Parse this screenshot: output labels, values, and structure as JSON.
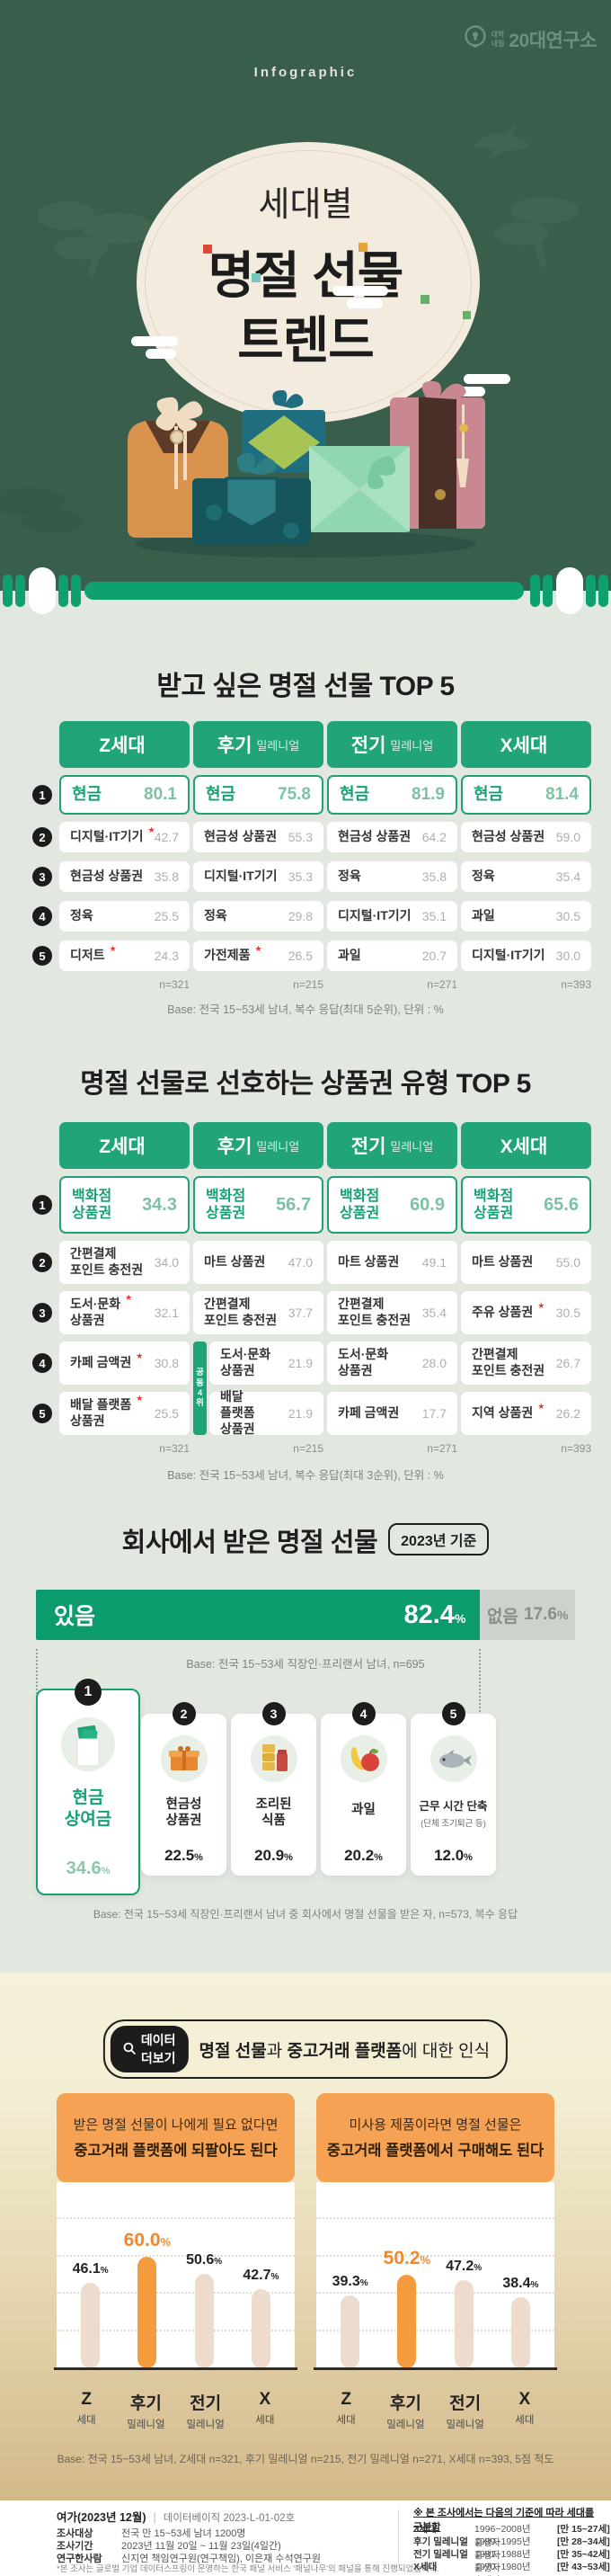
{
  "units": {
    "percent": "%"
  },
  "hero": {
    "tag": "Infographic",
    "logo_small_1": "대학",
    "logo_small_2": "내일",
    "logo_main": "20대연구소",
    "title1": "세대별",
    "title2": "명절 선물",
    "title3": "트렌드"
  },
  "table1": {
    "title": "받고 싶은 명절 선물 TOP 5",
    "base": "Base: 전국 15~53세 남녀, 복수 응답(최대 5순위), 단위 : %",
    "ranks": [
      "1",
      "2",
      "3",
      "4",
      "5"
    ],
    "columns": [
      {
        "name": "Z세대",
        "suffix": "",
        "n": "n=321",
        "rows": [
          {
            "label": "현금",
            "star": "",
            "value": "80.1"
          },
          {
            "label": "디지털·IT기기",
            "star": "★",
            "value": "42.7"
          },
          {
            "label": "현금성 상품권",
            "star": "",
            "value": "35.8"
          },
          {
            "label": "정육",
            "star": "",
            "value": "25.5"
          },
          {
            "label": "디저트",
            "star": "★",
            "value": "24.3"
          }
        ]
      },
      {
        "name": "후기",
        "suffix": "밀레니얼",
        "n": "n=215",
        "rows": [
          {
            "label": "현금",
            "star": "",
            "value": "75.8"
          },
          {
            "label": "현금성 상품권",
            "star": "",
            "value": "55.3"
          },
          {
            "label": "디지털·IT기기",
            "star": "",
            "value": "35.3"
          },
          {
            "label": "정육",
            "star": "",
            "value": "29.8"
          },
          {
            "label": "가전제품",
            "star": "★",
            "value": "26.5"
          }
        ]
      },
      {
        "name": "전기",
        "suffix": "밀레니얼",
        "n": "n=271",
        "rows": [
          {
            "label": "현금",
            "star": "",
            "value": "81.9"
          },
          {
            "label": "현금성 상품권",
            "star": "",
            "value": "64.2"
          },
          {
            "label": "정육",
            "star": "",
            "value": "35.8"
          },
          {
            "label": "디지털·IT기기",
            "star": "",
            "value": "35.1"
          },
          {
            "label": "과일",
            "star": "",
            "value": "20.7"
          }
        ]
      },
      {
        "name": "X세대",
        "suffix": "",
        "n": "n=393",
        "rows": [
          {
            "label": "현금",
            "star": "",
            "value": "81.4"
          },
          {
            "label": "현금성 상품권",
            "star": "",
            "value": "59.0"
          },
          {
            "label": "정육",
            "star": "",
            "value": "35.4"
          },
          {
            "label": "과일",
            "star": "",
            "value": "30.5"
          },
          {
            "label": "디지털·IT기기",
            "star": "",
            "value": "30.0"
          }
        ]
      }
    ]
  },
  "table2": {
    "title": "명절 선물로 선호하는 상품권 유형 TOP 5",
    "base": "Base: 전국 15~53세 남녀, 복수 응답(최대 3순위), 단위 : %",
    "tie": "공\n동\n4\n위",
    "ranks": [
      "1",
      "2",
      "3",
      "4",
      "5"
    ],
    "columns": [
      {
        "name": "Z세대",
        "suffix": "",
        "n": "n=321",
        "rows": [
          {
            "label": "백화점\n상품권",
            "star": "",
            "value": "34.3"
          },
          {
            "label": "간편결제\n포인트 충전권",
            "star": "",
            "value": "34.0"
          },
          {
            "label": "도서·문화\n상품권",
            "star": "★",
            "value": "32.1"
          },
          {
            "label": "카페 금액권",
            "star": "★",
            "value": "30.8"
          },
          {
            "label": "배달 플랫폼\n상품권",
            "star": "★",
            "value": "25.5"
          }
        ]
      },
      {
        "name": "후기",
        "suffix": "밀레니얼",
        "n": "n=215",
        "rows": [
          {
            "label": "백화점\n상품권",
            "star": "",
            "value": "56.7"
          },
          {
            "label": "마트 상품권",
            "star": "",
            "value": "47.0"
          },
          {
            "label": "간편결제\n포인트 충전권",
            "star": "",
            "value": "37.7"
          },
          {
            "label": "도서·문화\n상품권",
            "star": "",
            "value": "21.9"
          },
          {
            "label": "배달 플랫폼\n상품권",
            "star": "",
            "value": "21.9"
          }
        ]
      },
      {
        "name": "전기",
        "suffix": "밀레니얼",
        "n": "n=271",
        "rows": [
          {
            "label": "백화점\n상품권",
            "star": "",
            "value": "60.9"
          },
          {
            "label": "마트 상품권",
            "star": "",
            "value": "49.1"
          },
          {
            "label": "간편결제\n포인트 충전권",
            "star": "",
            "value": "35.4"
          },
          {
            "label": "도서·문화\n상품권",
            "star": "",
            "value": "28.0"
          },
          {
            "label": "카페 금액권",
            "star": "",
            "value": "17.7"
          }
        ]
      },
      {
        "name": "X세대",
        "suffix": "",
        "n": "n=393",
        "rows": [
          {
            "label": "백화점\n상품권",
            "star": "",
            "value": "65.6"
          },
          {
            "label": "마트 상품권",
            "star": "",
            "value": "55.0"
          },
          {
            "label": "주유 상품권",
            "star": "★",
            "value": "30.5"
          },
          {
            "label": "간편결제\n포인트 충전권",
            "star": "",
            "value": "26.7"
          },
          {
            "label": "지역 상품권",
            "star": "★",
            "value": "26.2"
          }
        ]
      }
    ]
  },
  "section3": {
    "title": "회사에서 받은 명절 선물",
    "badge": "2023년 기준",
    "yes_label": "있음",
    "yes_value": "82.4",
    "no_label": "없음",
    "no_value": "17.6",
    "base1": "Base: 전국 15~53세 직장인·프리랜서 남녀, n=695",
    "base2": "Base: 전국 15~53세 직장인·프리랜서 남녀 중 회사에서 명절 선물을 받은 자, n=573, 복수 응답",
    "cards": [
      {
        "rank": "1",
        "label": "현금\n상여금",
        "sub": "",
        "value": "34.6",
        "icon": "cash-bonus-icon"
      },
      {
        "rank": "2",
        "label": "현금성\n상품권",
        "sub": "",
        "value": "22.5",
        "icon": "gift-voucher-icon"
      },
      {
        "rank": "3",
        "label": "조리된\n식품",
        "sub": "",
        "value": "20.9",
        "icon": "canned-food-icon"
      },
      {
        "rank": "4",
        "label": "과일",
        "sub": "",
        "value": "20.2",
        "icon": "fruit-icon"
      },
      {
        "rank": "5",
        "label": "근무 시간 단축",
        "sub": "(단체 조기퇴근 등)",
        "value": "12.0",
        "icon": "fish-icon"
      }
    ]
  },
  "section4": {
    "pill_label": "데이터 더보기",
    "pill_t1": "명절 선물",
    "pill_t2": "과 ",
    "pill_t3": "중고거래 플랫폼",
    "pill_t4": "에 대한 인식",
    "base": "Base: 전국 15~53세 남녀, Z세대 n=321, 후기 밀레니얼 n=215, 전기 밀레니얼 n=271, X세대 n=393, 5점 척도",
    "gen_cats": [
      {
        "m": "Z",
        "s": "세대"
      },
      {
        "m": "후기",
        "s": "밀레니얼"
      },
      {
        "m": "전기",
        "s": "밀레니얼"
      },
      {
        "m": "X",
        "s": "세대"
      }
    ],
    "charts": [
      {
        "q1": "받은 명절 선물이 나에게 필요 없다면",
        "q2": "중고거래 플랫폼에 되팔아도 된다",
        "values": [
          "46.1",
          "60.0",
          "50.6",
          "42.7"
        ]
      },
      {
        "q1": "미사용 제품이라면 명절 선물은",
        "q2": "중고거래 플랫폼에서 구매해도 된다",
        "values": [
          "39.3",
          "50.2",
          "47.2",
          "38.4"
        ]
      }
    ]
  },
  "footer": {
    "title_bold": "여가(2023년 12월)",
    "divider": "|",
    "doc_no": "데이터베이직 2023-L-01-02호",
    "rows": [
      {
        "k": "조사대상",
        "v": "전국 만 15~53세 남녀 1200명"
      },
      {
        "k": "조사기간",
        "v": "2023년 11월 20일 ~ 11월 23일(4일간)"
      },
      {
        "k": "연구한사람",
        "v": "신지연 책임연구원(연구책임), 이은재 수석연구원"
      }
    ],
    "note": "*본 조사는 글로벌 기업 데이터스프링이 운영하는 한국 패널 서비스 '패널나우'의 패널을 통해 진행되었습니다.",
    "gen_title": "※ 본 조사에서는 다음의 기준에 따라 세대를 구분함",
    "gens": [
      {
        "name": "Z세대",
        "range": "1996~2008년 출생자",
        "age": "[만 15~27세]"
      },
      {
        "name": "후기 밀레니얼",
        "range": "1989~1995년 출생자",
        "age": "[만 28~34세]"
      },
      {
        "name": "전기 밀레니얼",
        "range": "1981~1988년 출생자",
        "age": "[만 35~42세]"
      },
      {
        "name": "X세대",
        "range": "1970~1980년 출생자",
        "age": "[만 43~53세]"
      }
    ]
  },
  "colors": {
    "dark_green": "#3A5E4C",
    "accent_green": "#0FA06F",
    "header_green": "#21A478",
    "light_bg": "#E2E8E0",
    "cream": "#F5F1DB",
    "tan": "#D2B989",
    "orange": "#F5A254",
    "bar_orange": "#F49B3D",
    "bar_beige": "#EDDCCE",
    "star_red": "#E33B2B",
    "gray_bar": "#CDD2CC"
  },
  "chart_data": [
    {
      "type": "table",
      "title": "받고 싶은 명절 선물 TOP 5",
      "unit": "%",
      "series": [
        {
          "name": "Z세대",
          "n": 321,
          "items": [
            [
              "현금",
              80.1
            ],
            [
              "디지털·IT기기",
              42.7
            ],
            [
              "현금성 상품권",
              35.8
            ],
            [
              "정육",
              25.5
            ],
            [
              "디저트",
              24.3
            ]
          ]
        },
        {
          "name": "후기 밀레니얼",
          "n": 215,
          "items": [
            [
              "현금",
              75.8
            ],
            [
              "현금성 상품권",
              55.3
            ],
            [
              "디지털·IT기기",
              35.3
            ],
            [
              "정육",
              29.8
            ],
            [
              "가전제품",
              26.5
            ]
          ]
        },
        {
          "name": "전기 밀레니얼",
          "n": 271,
          "items": [
            [
              "현금",
              81.9
            ],
            [
              "현금성 상품권",
              64.2
            ],
            [
              "정육",
              35.8
            ],
            [
              "디지털·IT기기",
              35.1
            ],
            [
              "과일",
              20.7
            ]
          ]
        },
        {
          "name": "X세대",
          "n": 393,
          "items": [
            [
              "현금",
              81.4
            ],
            [
              "현금성 상품권",
              59.0
            ],
            [
              "정육",
              35.4
            ],
            [
              "과일",
              30.5
            ],
            [
              "디지털·IT기기",
              30.0
            ]
          ]
        }
      ]
    },
    {
      "type": "table",
      "title": "명절 선물로 선호하는 상품권 유형 TOP 5",
      "unit": "%",
      "series": [
        {
          "name": "Z세대",
          "n": 321,
          "items": [
            [
              "백화점 상품권",
              34.3
            ],
            [
              "간편결제 포인트 충전권",
              34.0
            ],
            [
              "도서·문화 상품권",
              32.1
            ],
            [
              "카페 금액권",
              30.8
            ],
            [
              "배달 플랫폼 상품권",
              25.5
            ]
          ]
        },
        {
          "name": "후기 밀레니얼",
          "n": 215,
          "items": [
            [
              "백화점 상품권",
              56.7
            ],
            [
              "마트 상품권",
              47.0
            ],
            [
              "간편결제 포인트 충전권",
              37.7
            ],
            [
              "도서·문화 상품권",
              21.9
            ],
            [
              "배달 플랫폼 상품권",
              21.9
            ]
          ]
        },
        {
          "name": "전기 밀레니얼",
          "n": 271,
          "items": [
            [
              "백화점 상품권",
              60.9
            ],
            [
              "마트 상품권",
              49.1
            ],
            [
              "간편결제 포인트 충전권",
              35.4
            ],
            [
              "도서·문화 상품권",
              28.0
            ],
            [
              "카페 금액권",
              17.7
            ]
          ]
        },
        {
          "name": "X세대",
          "n": 393,
          "items": [
            [
              "백화점 상품권",
              65.6
            ],
            [
              "마트 상품권",
              55.0
            ],
            [
              "주유 상품권",
              30.5
            ],
            [
              "간편결제 포인트 충전권",
              26.7
            ],
            [
              "지역 상품권",
              26.2
            ]
          ]
        }
      ]
    },
    {
      "type": "bar",
      "title": "회사에서 받은 명절 선물 (2023년 기준)",
      "categories": [
        "있음",
        "없음"
      ],
      "values": [
        82.4,
        17.6
      ],
      "unit": "%",
      "n": 695
    },
    {
      "type": "bar",
      "title": "회사에서 받은 명절 선물 품목",
      "categories": [
        "현금 상여금",
        "현금성 상품권",
        "조리된 식품",
        "과일",
        "근무 시간 단축(단체 조기퇴근 등)"
      ],
      "values": [
        34.6,
        22.5,
        20.9,
        20.2,
        12.0
      ],
      "unit": "%",
      "n": 573
    },
    {
      "type": "bar",
      "title": "받은 명절 선물이 나에게 필요 없다면 중고거래 플랫폼에 되팔아도 된다",
      "categories": [
        "Z세대",
        "후기 밀레니얼",
        "전기 밀레니얼",
        "X세대"
      ],
      "values": [
        46.1,
        60.0,
        50.6,
        42.7
      ],
      "highlight": "후기 밀레니얼",
      "ylim": [
        0,
        100
      ],
      "grid": true,
      "unit": "%"
    },
    {
      "type": "bar",
      "title": "미사용 제품이라면 명절 선물은 중고거래 플랫폼에서 구매해도 된다",
      "categories": [
        "Z세대",
        "후기 밀레니얼",
        "전기 밀레니얼",
        "X세대"
      ],
      "values": [
        39.3,
        50.2,
        47.2,
        38.4
      ],
      "highlight": "후기 밀레니얼",
      "ylim": [
        0,
        100
      ],
      "grid": true,
      "unit": "%"
    }
  ]
}
